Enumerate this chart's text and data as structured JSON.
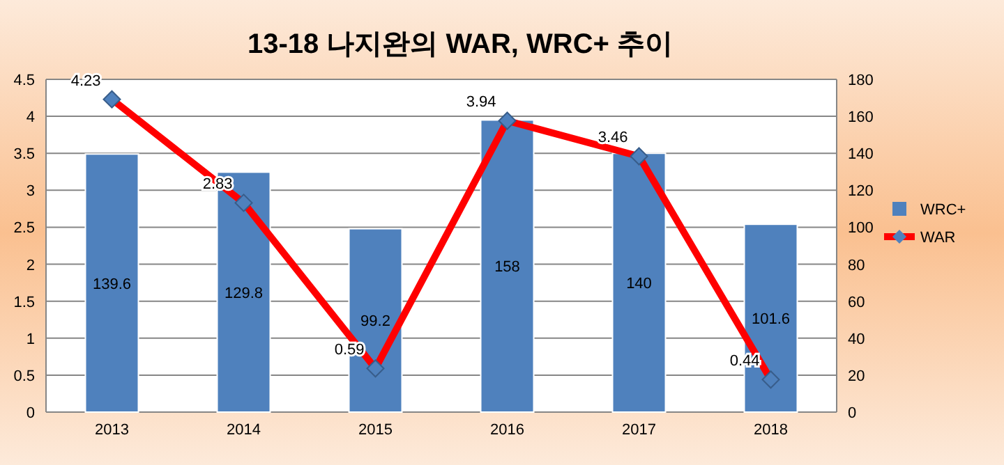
{
  "chart_data": {
    "type": "bar",
    "title": "13-18 나지완의 WAR, WRC+ 추이",
    "categories": [
      "2013",
      "2014",
      "2015",
      "2016",
      "2017",
      "2018"
    ],
    "series": [
      {
        "name": "WRC+",
        "axis": "y2",
        "color": "#4f81bd",
        "values": [
          139.6,
          129.8,
          99.2,
          158,
          140,
          101.6
        ]
      },
      {
        "name": "WAR",
        "type": "line",
        "axis": "y",
        "color": "#ff0000",
        "marker": "diamond",
        "line_style": "solid",
        "values": [
          4.23,
          2.83,
          0.59,
          3.94,
          3.46,
          0.44
        ]
      }
    ],
    "ylim": [
      0,
      4.5
    ],
    "yticks": [
      0,
      0.5,
      1,
      1.5,
      2,
      2.5,
      3,
      3.5,
      4,
      4.5
    ],
    "y2lim": [
      0,
      180
    ],
    "y2ticks": [
      0,
      20,
      40,
      60,
      80,
      100,
      120,
      140,
      160,
      180
    ],
    "grid": "y",
    "legend": "right",
    "data_labels": true
  }
}
